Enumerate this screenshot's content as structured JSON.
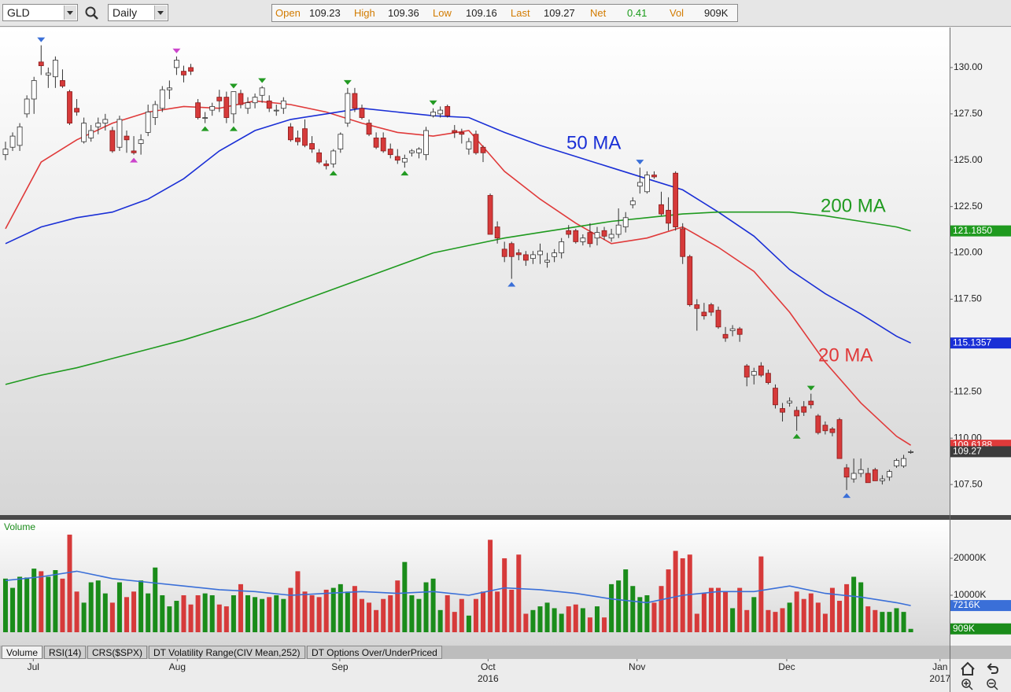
{
  "toolbar": {
    "symbol": "GLD",
    "interval": "Daily",
    "quote": [
      {
        "label": "Open",
        "value": 109.23
      },
      {
        "label": "High",
        "value": 109.36
      },
      {
        "label": "Low",
        "value": 109.16
      },
      {
        "label": "Last",
        "value": 109.27
      },
      {
        "label": "Net",
        "value": 0.41
      },
      {
        "label": "Vol",
        "value": "909K"
      }
    ]
  },
  "chart_data": {
    "type": "candlestick",
    "xlim": [
      -0.77,
      132.45
    ],
    "xticks": [
      {
        "value": 3.9,
        "label": "Jul"
      },
      {
        "value": 24.1,
        "label": "Aug"
      },
      {
        "value": 46.9,
        "label": "Sep"
      },
      {
        "value": 67.7,
        "label": "Oct"
      },
      {
        "value": 88.6,
        "label": "Nov"
      },
      {
        "value": 109.6,
        "label": "Dec"
      },
      {
        "value": 131.1,
        "label": "Jan"
      }
    ],
    "year_labels": [
      {
        "value": 67.7,
        "label": "2016"
      },
      {
        "value": 131.1,
        "label": "2017"
      }
    ],
    "ylim": [
      105.85,
      132.16
    ],
    "yticks": [
      {
        "value": 107.5,
        "label": "107.50"
      },
      {
        "value": 110,
        "label": "110.00"
      },
      {
        "value": 112.5,
        "label": "112.50"
      },
      {
        "value": 115,
        "label": "115.00"
      },
      {
        "value": 117.5,
        "label": "117.50"
      },
      {
        "value": 120,
        "label": "120.00"
      },
      {
        "value": 122.5,
        "label": "122.50"
      },
      {
        "value": 125,
        "label": "125.00"
      },
      {
        "value": 127.5,
        "label": "127.50"
      },
      {
        "value": 130,
        "label": "130.00"
      }
    ],
    "grid": false,
    "up_color": "#ffffff",
    "down_color": "#d63a3a",
    "open": [
      125.3,
      125.7,
      125.8,
      127.5,
      128.3,
      130.3,
      129.6,
      129.5,
      129.3,
      128.7,
      127.8,
      126.0,
      126.2,
      126.8,
      127.0,
      126.6,
      125.7,
      126.3,
      125.5,
      125.9,
      126.5,
      127.3,
      127.8,
      128.8,
      130.0,
      129.8,
      130.0,
      128.1,
      127.3,
      127.7,
      128.4,
      128.4,
      127.5,
      128.6,
      127.8,
      128.1,
      128.5,
      128.2,
      127.7,
      127.8,
      126.8,
      126.2,
      126.7,
      125.9,
      125.4,
      124.8,
      124.8,
      125.6,
      127.0,
      128.6,
      127.8,
      127.0,
      126.2,
      126.2,
      125.6,
      125.2,
      124.9,
      125.4,
      125.4,
      125.3,
      127.4,
      127.5,
      127.9,
      126.6,
      126.5,
      125.6,
      126.4,
      125.7,
      123.1,
      121.4,
      120.2,
      120.5,
      120.0,
      119.9,
      119.7,
      119.9,
      119.5,
      119.8,
      120.0,
      121.2,
      121.2,
      120.6,
      121.1,
      120.8,
      121.2,
      120.8,
      121.0,
      121.4,
      122.6,
      123.6,
      123.3,
      124.2,
      122.6,
      122.3,
      124.3,
      121.3,
      119.8,
      117.2,
      116.8,
      117.2,
      116.9,
      115.6,
      115.8,
      115.9,
      113.9,
      113.4,
      113.9,
      113.5,
      112.7,
      111.6,
      111.9,
      111.5,
      111.7,
      112.0,
      111.2,
      110.7,
      110.5,
      111.0,
      108.4,
      107.8,
      108.1,
      108.1,
      108.3,
      107.7,
      107.9,
      108.5,
      108.5,
      109.23
    ],
    "high": [
      126.0,
      126.5,
      127.0,
      128.5,
      129.5,
      131.2,
      130.0,
      130.6,
      129.9,
      128.8,
      128.3,
      127.3,
      126.9,
      127.3,
      127.5,
      126.8,
      127.4,
      126.6,
      126.3,
      126.4,
      128.0,
      128.2,
      129.0,
      129.3,
      130.6,
      130.1,
      130.2,
      128.3,
      127.6,
      128.1,
      128.8,
      128.7,
      128.7,
      128.8,
      128.4,
      128.6,
      129.0,
      128.5,
      128.0,
      128.4,
      127.0,
      126.6,
      127.2,
      126.3,
      125.6,
      125.0,
      125.6,
      126.5,
      128.9,
      128.9,
      128.0,
      127.2,
      126.5,
      126.5,
      125.9,
      125.6,
      125.3,
      125.6,
      125.7,
      126.8,
      127.8,
      127.9,
      128.0,
      126.9,
      126.7,
      126.2,
      126.6,
      125.8,
      123.2,
      121.7,
      120.6,
      120.6,
      120.2,
      120.1,
      120.1,
      120.5,
      120.0,
      120.2,
      120.8,
      121.5,
      121.3,
      121.0,
      121.6,
      121.4,
      121.4,
      121.3,
      122.4,
      122.2,
      123.0,
      124.6,
      124.4,
      124.4,
      123.3,
      123.0,
      124.4,
      121.6,
      119.9,
      117.5,
      117.3,
      117.3,
      117.1,
      116.0,
      116.1,
      116.0,
      114.0,
      113.8,
      114.1,
      113.7,
      112.9,
      111.9,
      112.2,
      111.7,
      112.0,
      112.4,
      111.3,
      110.9,
      110.6,
      111.1,
      108.6,
      108.9,
      108.9,
      108.4,
      108.4,
      108.0,
      108.3,
      108.9,
      109.1,
      109.36
    ],
    "low": [
      125.0,
      125.5,
      125.5,
      127.3,
      127.5,
      129.6,
      128.9,
      128.9,
      128.9,
      126.9,
      127.4,
      125.9,
      126.0,
      126.4,
      126.6,
      125.4,
      125.5,
      125.4,
      125.3,
      125.3,
      126.3,
      126.9,
      127.6,
      128.3,
      129.6,
      129.2,
      129.6,
      127.2,
      127.0,
      127.4,
      127.6,
      127.0,
      127.0,
      127.8,
      127.5,
      127.8,
      128.1,
      127.6,
      127.4,
      127.5,
      126.0,
      125.8,
      125.7,
      125.4,
      124.8,
      124.5,
      124.6,
      125.4,
      126.8,
      127.6,
      127.2,
      126.3,
      125.6,
      125.4,
      125.1,
      124.8,
      124.6,
      125.2,
      125.1,
      125.0,
      127.3,
      127.3,
      127.3,
      126.2,
      125.9,
      125.3,
      125.3,
      124.9,
      121.0,
      120.5,
      119.5,
      118.6,
      119.6,
      119.3,
      119.4,
      119.4,
      119.2,
      119.5,
      119.7,
      120.8,
      120.5,
      120.4,
      120.3,
      120.4,
      120.7,
      120.6,
      120.8,
      121.1,
      122.4,
      123.2,
      123.2,
      124.0,
      122.0,
      121.2,
      121.2,
      119.4,
      117.1,
      115.8,
      116.4,
      116.6,
      115.9,
      115.2,
      115.5,
      115.2,
      112.8,
      112.9,
      113.3,
      112.9,
      111.6,
      110.9,
      111.7,
      110.4,
      111.2,
      111.6,
      110.2,
      110.2,
      110.1,
      108.9,
      107.2,
      107.6,
      107.9,
      107.6,
      107.7,
      107.5,
      107.7,
      108.4,
      108.4,
      109.16
    ],
    "close": [
      125.6,
      126.3,
      126.8,
      128.3,
      129.3,
      130.1,
      129.7,
      130.4,
      129.0,
      127.0,
      127.6,
      127.0,
      126.6,
      127.0,
      127.2,
      125.5,
      127.2,
      126.1,
      125.4,
      126.1,
      127.6,
      128.0,
      128.8,
      128.9,
      130.4,
      129.6,
      129.8,
      127.3,
      127.3,
      127.9,
      128.2,
      127.3,
      128.7,
      128.0,
      128.1,
      128.4,
      128.9,
      127.8,
      127.7,
      128.2,
      126.1,
      126.0,
      125.8,
      125.6,
      124.9,
      124.7,
      125.5,
      126.4,
      128.6,
      127.8,
      127.3,
      126.4,
      125.7,
      125.5,
      125.3,
      125.0,
      125.1,
      125.5,
      125.6,
      126.6,
      127.6,
      127.7,
      127.4,
      126.5,
      126.4,
      126.0,
      125.4,
      125.4,
      121.0,
      120.8,
      119.8,
      119.8,
      119.9,
      119.6,
      119.9,
      120.1,
      119.6,
      120.0,
      120.6,
      121.0,
      120.6,
      120.8,
      120.5,
      121.1,
      120.9,
      121.0,
      121.5,
      121.9,
      122.8,
      123.8,
      124.2,
      124.1,
      122.1,
      121.6,
      121.4,
      119.8,
      117.2,
      117.0,
      116.6,
      116.8,
      116.0,
      115.4,
      115.9,
      115.6,
      113.3,
      113.6,
      113.4,
      113.0,
      111.8,
      111.4,
      112.0,
      111.2,
      111.4,
      111.8,
      110.3,
      110.4,
      110.3,
      108.9,
      107.9,
      108.1,
      108.3,
      107.6,
      107.7,
      107.8,
      108.2,
      108.8,
      108.9,
      109.27
    ],
    "last_label": "109.27",
    "series": [
      {
        "name": "20 MA",
        "color": "#e03a3a",
        "x": [
          0,
          5,
          10,
          15,
          20,
          25,
          30,
          35,
          40,
          45,
          50,
          55,
          60,
          65,
          70,
          75,
          80,
          85,
          90,
          95,
          100,
          105,
          110,
          115,
          120,
          125,
          127
        ],
        "values": [
          121.3,
          124.9,
          126.1,
          127.0,
          127.6,
          127.9,
          127.8,
          128.2,
          128.0,
          127.6,
          127.0,
          126.5,
          126.3,
          126.6,
          124.4,
          122.9,
          121.6,
          120.5,
          120.8,
          121.4,
          120.3,
          119.0,
          116.8,
          114.1,
          111.9,
          110.1,
          109.6188
        ],
        "value_label": "109.6188"
      },
      {
        "name": "50 MA",
        "color": "#1a2fd6",
        "x": [
          0,
          5,
          10,
          15,
          20,
          25,
          30,
          35,
          40,
          45,
          50,
          55,
          60,
          65,
          70,
          75,
          80,
          85,
          90,
          95,
          100,
          105,
          110,
          115,
          120,
          125,
          127
        ],
        "values": [
          120.5,
          121.4,
          121.9,
          122.2,
          122.9,
          124.0,
          125.5,
          126.6,
          127.2,
          127.5,
          127.8,
          127.6,
          127.4,
          127.3,
          126.5,
          125.8,
          125.2,
          124.6,
          124.0,
          123.4,
          122.2,
          120.9,
          119.1,
          117.8,
          116.7,
          115.5,
          115.1357
        ],
        "value_label": "115.1357"
      },
      {
        "name": "200 MA",
        "color": "#1f9a1f",
        "x": [
          0,
          5,
          10,
          15,
          20,
          25,
          30,
          35,
          40,
          45,
          50,
          55,
          60,
          65,
          70,
          75,
          80,
          85,
          90,
          95,
          100,
          105,
          110,
          115,
          120,
          125,
          127
        ],
        "values": [
          112.9,
          113.4,
          113.8,
          114.3,
          114.8,
          115.3,
          115.9,
          116.5,
          117.2,
          117.9,
          118.6,
          119.3,
          120.0,
          120.4,
          120.8,
          121.1,
          121.4,
          121.7,
          121.9,
          122.1,
          122.2,
          122.2,
          122.2,
          122.0,
          121.7,
          121.4,
          121.185
        ],
        "value_label": "121.1850"
      }
    ],
    "signals": [
      {
        "bar": 5,
        "side": "top",
        "color": "#3a6fd8"
      },
      {
        "bar": 24,
        "side": "top",
        "color": "#cc44cc"
      },
      {
        "bar": 32,
        "side": "top",
        "color": "#229a22"
      },
      {
        "bar": 36,
        "side": "top",
        "color": "#229a22"
      },
      {
        "bar": 48,
        "side": "top",
        "color": "#229a22"
      },
      {
        "bar": 60,
        "side": "top",
        "color": "#229a22"
      },
      {
        "bar": 89,
        "side": "top",
        "color": "#3a6fd8"
      },
      {
        "bar": 113,
        "side": "top",
        "color": "#229a22"
      },
      {
        "bar": 18,
        "side": "bottom",
        "color": "#cc44cc"
      },
      {
        "bar": 28,
        "side": "bottom",
        "color": "#229a22"
      },
      {
        "bar": 32,
        "side": "bottom",
        "color": "#229a22"
      },
      {
        "bar": 46,
        "side": "bottom",
        "color": "#229a22"
      },
      {
        "bar": 56,
        "side": "bottom",
        "color": "#229a22"
      },
      {
        "bar": 71,
        "side": "bottom",
        "color": "#3a6fd8"
      },
      {
        "bar": 111,
        "side": "bottom",
        "color": "#229a22"
      },
      {
        "bar": 118,
        "side": "bottom",
        "color": "#3a6fd8"
      }
    ]
  },
  "volume": {
    "type": "bar",
    "label": "Volume",
    "ylim": [
      0,
      30200
    ],
    "yticks": [
      {
        "value": 10000,
        "label": "10000K"
      },
      {
        "value": 20000,
        "label": "20000K"
      }
    ],
    "up_color": "#1a8c1a",
    "down_color": "#d63a3a",
    "values": [
      14500,
      12000,
      15000,
      14800,
      17200,
      16500,
      15000,
      16800,
      14500,
      26400,
      11000,
      8000,
      13500,
      14000,
      10500,
      8000,
      13500,
      9500,
      11000,
      14000,
      10500,
      17500,
      10000,
      7000,
      8500,
      10000,
      7500,
      10000,
      10500,
      10000,
      7500,
      7000,
      10000,
      13000,
      10000,
      9500,
      9000,
      9500,
      10000,
      9000,
      12000,
      16500,
      11000,
      10000,
      9500,
      11500,
      12000,
      13000,
      11000,
      12500,
      9000,
      8000,
      6000,
      9000,
      10000,
      14000,
      19000,
      10000,
      9000,
      13500,
      14500,
      6000,
      10000,
      5500,
      9000,
      4500,
      9000,
      11000,
      25000,
      11000,
      20000,
      11500,
      21000,
      5000,
      6000,
      7000,
      8000,
      6500,
      5000,
      7000,
      7500,
      6500,
      4000,
      7000,
      4000,
      13000,
      14000,
      17000,
      12500,
      9500,
      10000,
      8000,
      12500,
      17000,
      22000,
      20000,
      21000,
      5000,
      10500,
      12000,
      12000,
      11000,
      6500,
      12000,
      6000,
      9500,
      20500,
      6000,
      5500,
      6500,
      8000,
      11000,
      9000,
      10500,
      8000,
      5000,
      12000,
      8500,
      13000,
      15000,
      13500,
      7000,
      6000,
      5500,
      5500,
      6500,
      5500,
      909
    ],
    "value_label": "909K",
    "average": {
      "color": "#3a6fd8",
      "x": [
        0,
        5,
        10,
        15,
        20,
        25,
        30,
        35,
        40,
        45,
        50,
        55,
        60,
        65,
        70,
        75,
        80,
        85,
        90,
        95,
        100,
        105,
        110,
        115,
        120,
        125,
        127
      ],
      "values": [
        14000,
        15000,
        16500,
        14500,
        13500,
        12500,
        11500,
        11000,
        10000,
        10500,
        11000,
        10500,
        11000,
        10000,
        12000,
        11500,
        10500,
        9000,
        8000,
        10000,
        11000,
        11000,
        12500,
        10500,
        9500,
        8000,
        7216
      ],
      "value_label": "7216K"
    }
  },
  "tabs": [
    "Volume",
    "RSI(14)",
    "CRS($SPX)",
    "DT Volatility Range(CIV Mean,252)",
    "DT Options Over/UnderPriced"
  ]
}
